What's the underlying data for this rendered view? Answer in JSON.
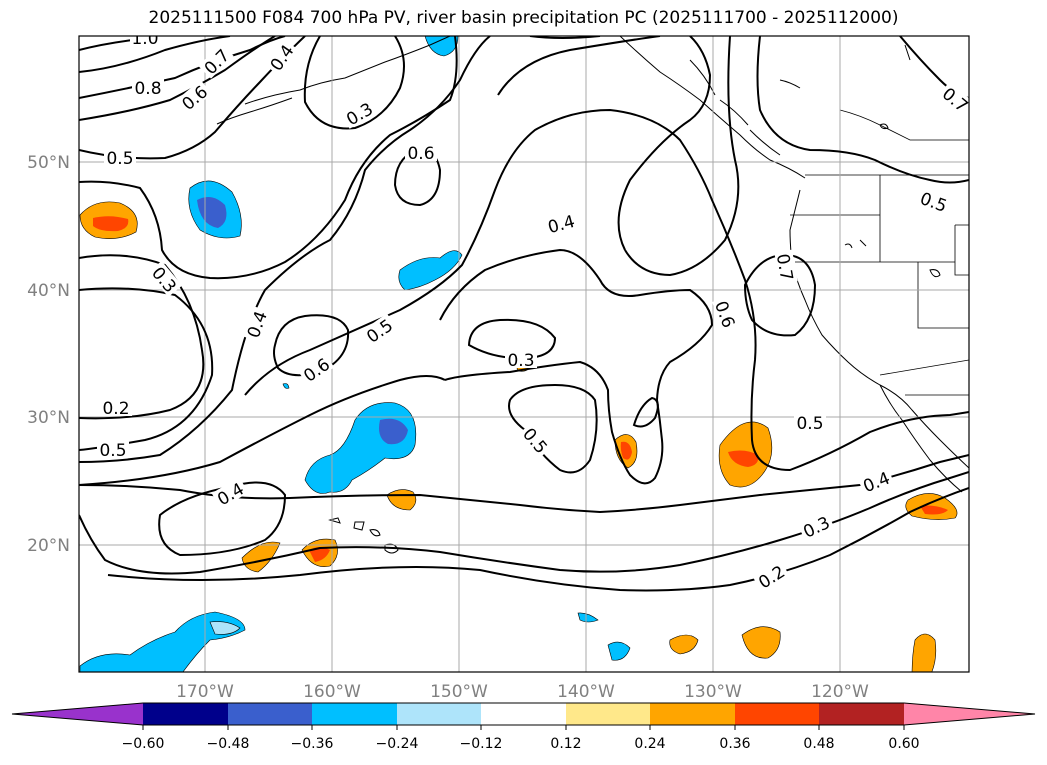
{
  "title": "2025111500 F084 700 hPa PV, river basin precipitation PC (2025111700 - 2025112000)",
  "axes": {
    "lat_labels": [
      "50°N",
      "40°N",
      "30°N",
      "20°N"
    ],
    "lon_labels": [
      "170°W",
      "160°W",
      "150°W",
      "140°W",
      "130°W",
      "120°W"
    ]
  },
  "colorbar": {
    "ticks": [
      "−0.60",
      "−0.48",
      "−0.36",
      "−0.24",
      "−0.12",
      "0.12",
      "0.24",
      "0.36",
      "0.48",
      "0.60"
    ],
    "colors": [
      "#9932cc",
      "#00008b",
      "#3a5fcd",
      "#00bfff",
      "#aee4fa",
      "#ffffff",
      "#ffe88a",
      "#ffa500",
      "#ff4500",
      "#b22222",
      "#ff85a8"
    ]
  },
  "contour_labels": [
    {
      "id": "c1",
      "text": "1.0"
    },
    {
      "id": "c2",
      "text": "0.7"
    },
    {
      "id": "c3",
      "text": "0.4"
    },
    {
      "id": "c4",
      "text": "0.8"
    },
    {
      "id": "c5",
      "text": "0.6"
    },
    {
      "id": "c6",
      "text": "0.3"
    },
    {
      "id": "c7",
      "text": "0.5"
    },
    {
      "id": "c8",
      "text": "0.6"
    },
    {
      "id": "c9",
      "text": "0.4"
    },
    {
      "id": "c10",
      "text": "0.5"
    },
    {
      "id": "c11",
      "text": "0.7"
    },
    {
      "id": "c12",
      "text": "0.7"
    },
    {
      "id": "c13",
      "text": "0.3"
    },
    {
      "id": "c14",
      "text": "0.4"
    },
    {
      "id": "c15",
      "text": "0.6"
    },
    {
      "id": "c16",
      "text": "0.5"
    },
    {
      "id": "c17",
      "text": "0.6"
    },
    {
      "id": "c18",
      "text": "0.3"
    },
    {
      "id": "c19",
      "text": "0.2"
    },
    {
      "id": "c20",
      "text": "0.5"
    },
    {
      "id": "c21",
      "text": "0.5"
    },
    {
      "id": "c22",
      "text": "0.4"
    },
    {
      "id": "c23",
      "text": "0.5"
    },
    {
      "id": "c24",
      "text": "0.4"
    },
    {
      "id": "c25",
      "text": "0.3"
    },
    {
      "id": "c26",
      "text": "0.2"
    }
  ]
}
